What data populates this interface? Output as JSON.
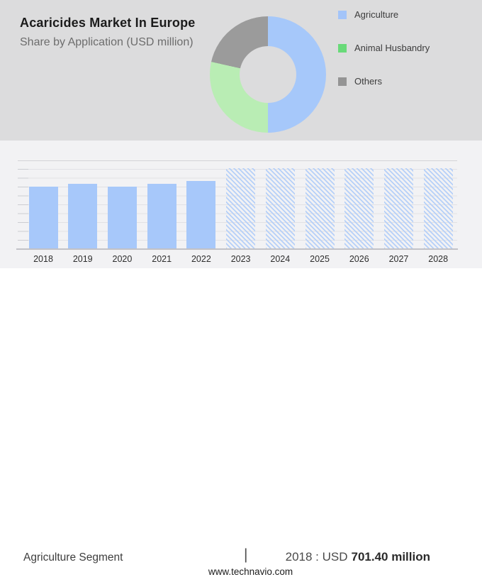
{
  "header": {
    "title": "Acaricides Market In Europe",
    "subtitle": "Share by Application (USD million)"
  },
  "legend": {
    "items": [
      {
        "label": "Agriculture",
        "color": "#a3c4f9"
      },
      {
        "label": "Animal Husbandry",
        "color": "#69da79"
      },
      {
        "label": "Others",
        "color": "#949494"
      }
    ]
  },
  "chart_data": [
    {
      "type": "pie",
      "donut": true,
      "title": "Share by Application (USD million)",
      "labels": [
        "Agriculture",
        "Animal Husbandry",
        "Others"
      ],
      "values_pct": [
        50,
        28.5,
        21.5
      ],
      "colors": [
        "#a6c8fa",
        "#b9edb4",
        "#9b9b9b"
      ],
      "legend_position": "right"
    },
    {
      "type": "bar",
      "title": "Agriculture Segment (USD million)",
      "categories": [
        "2018",
        "2019",
        "2020",
        "2021",
        "2022",
        "2023",
        "2024",
        "2025",
        "2026",
        "2027",
        "2028"
      ],
      "values": [
        701.4,
        734,
        706,
        734,
        765,
        null,
        null,
        null,
        null,
        null,
        null
      ],
      "values_estimated": true,
      "labeled_value": {
        "year": "2018",
        "value": 701.4,
        "unit": "USD million"
      },
      "forecast_categories": [
        "2023",
        "2024",
        "2025",
        "2026",
        "2027",
        "2028"
      ],
      "forecast_style": "hatched",
      "bar_color": "#a7c8fa",
      "ylim": [
        0,
        1000
      ],
      "grid": true
    }
  ],
  "footer": {
    "segment_label": "Agriculture Segment",
    "separator": "|",
    "stat_prefix": "2018 : USD",
    "stat_value": "701.40 million",
    "website": "www.technavio.com"
  }
}
